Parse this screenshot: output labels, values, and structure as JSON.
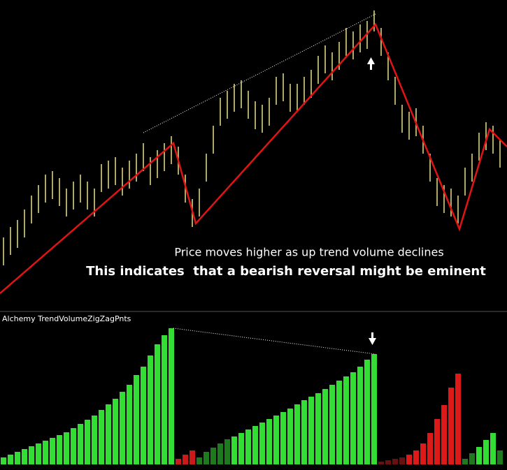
{
  "chart_data": [
    {
      "type": "hilo",
      "annotations": [
        "Price moves higher as up trend volume declines",
        "This indicates  that a bearish reversal might be eminent"
      ],
      "xlim": [
        0,
        725
      ],
      "ylim": [
        0,
        440
      ],
      "color": "#e8e08a",
      "x": [
        5,
        15,
        25,
        35,
        45,
        55,
        65,
        75,
        85,
        95,
        105,
        115,
        125,
        135,
        145,
        155,
        165,
        175,
        185,
        195,
        205,
        215,
        225,
        235,
        245,
        255,
        265,
        275,
        285,
        295,
        305,
        315,
        325,
        335,
        345,
        355,
        365,
        375,
        385,
        395,
        405,
        415,
        425,
        435,
        445,
        455,
        465,
        475,
        485,
        495,
        505,
        515,
        525,
        535,
        545,
        555,
        565,
        575,
        585,
        595,
        605,
        615,
        625,
        635,
        645,
        655,
        665,
        675,
        685,
        695,
        705,
        715
      ],
      "high": [
        100,
        115,
        125,
        140,
        160,
        175,
        190,
        195,
        185,
        170,
        180,
        190,
        180,
        170,
        205,
        210,
        215,
        200,
        210,
        220,
        235,
        215,
        225,
        235,
        245,
        230,
        190,
        155,
        170,
        220,
        260,
        300,
        310,
        320,
        325,
        310,
        295,
        290,
        300,
        330,
        335,
        320,
        320,
        330,
        340,
        360,
        375,
        365,
        380,
        400,
        395,
        405,
        410,
        425,
        400,
        365,
        330,
        290,
        280,
        285,
        260,
        220,
        185,
        175,
        170,
        160,
        200,
        220,
        250,
        265,
        260,
        240
      ],
      "low": [
        60,
        75,
        85,
        100,
        120,
        135,
        150,
        155,
        145,
        130,
        140,
        150,
        140,
        130,
        165,
        170,
        175,
        160,
        170,
        180,
        195,
        175,
        185,
        195,
        205,
        190,
        150,
        115,
        130,
        180,
        220,
        260,
        270,
        280,
        285,
        270,
        255,
        250,
        260,
        290,
        295,
        280,
        280,
        290,
        300,
        320,
        335,
        325,
        340,
        360,
        355,
        365,
        370,
        395,
        360,
        325,
        290,
        250,
        240,
        245,
        220,
        180,
        145,
        135,
        130,
        120,
        160,
        180,
        210,
        225,
        220,
        200
      ],
      "zigzag": {
        "color": "#e01414",
        "x": [
          0,
          248,
          280,
          537,
          657,
          700,
          725
        ],
        "values": [
          20,
          235,
          120,
          405,
          112,
          255,
          230
        ]
      },
      "trendline": {
        "color": "#ffffff",
        "x": [
          205,
          537
        ],
        "values": [
          250,
          420
        ]
      }
    },
    {
      "type": "bar",
      "title": "Alchemy TrendVolumeZigZagPnts",
      "xlim": [
        0,
        725
      ],
      "ylim": [
        0,
        200
      ],
      "segments": [
        {
          "color": "#33dd33",
          "x": [
            5,
            15,
            25,
            35,
            45,
            55,
            65,
            75,
            85,
            95,
            105,
            115,
            125,
            135,
            145,
            155,
            165,
            175,
            185,
            195,
            205,
            215,
            225,
            235,
            245
          ],
          "values": [
            10,
            14,
            18,
            22,
            26,
            30,
            34,
            38,
            42,
            46,
            52,
            58,
            64,
            70,
            78,
            86,
            94,
            104,
            114,
            128,
            140,
            156,
            172,
            185,
            195
          ]
        },
        {
          "color": "#cc1a1a",
          "x": [
            255,
            265,
            275
          ],
          "values": [
            8,
            14,
            20
          ]
        },
        {
          "color": "#1f7a1f",
          "x": [
            285,
            295,
            305,
            315,
            325
          ],
          "values": [
            10,
            18,
            24,
            30,
            36
          ]
        },
        {
          "color": "#33dd33",
          "x": [
            335,
            345,
            355,
            365,
            375,
            385,
            395,
            405,
            415,
            425,
            435,
            445,
            455,
            465,
            475,
            485,
            495,
            505,
            515,
            525,
            535
          ],
          "values": [
            40,
            45,
            50,
            55,
            60,
            65,
            70,
            75,
            80,
            86,
            92,
            97,
            102,
            108,
            114,
            120,
            126,
            132,
            140,
            150,
            158
          ]
        },
        {
          "color": "#6a1010",
          "x": [
            545,
            555,
            565,
            575
          ],
          "values": [
            4,
            6,
            8,
            10
          ]
        },
        {
          "color": "#dd1a1a",
          "x": [
            585,
            595,
            605,
            615,
            625,
            635,
            645,
            655
          ],
          "values": [
            14,
            20,
            30,
            45,
            65,
            85,
            110,
            130
          ]
        },
        {
          "color": "#1f7a1f",
          "x": [
            665,
            675
          ],
          "values": [
            8,
            16
          ]
        },
        {
          "color": "#33dd33",
          "x": [
            685,
            695,
            705
          ],
          "values": [
            25,
            35,
            45
          ]
        },
        {
          "color": "#1f7a1f",
          "x": [
            715
          ],
          "values": [
            20
          ]
        }
      ],
      "trendline": {
        "color": "#ffffff",
        "x": [
          248,
          537
        ],
        "values": [
          195,
          158
        ]
      }
    }
  ]
}
